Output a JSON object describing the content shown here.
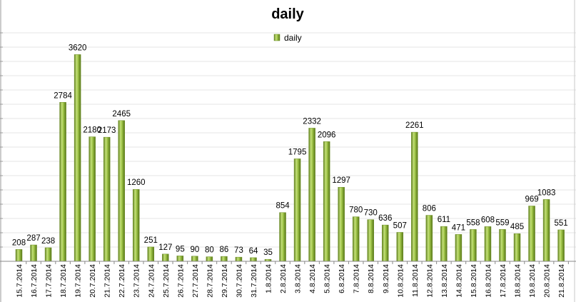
{
  "chart_data": {
    "type": "bar",
    "title": "daily",
    "xlabel": "",
    "ylabel": "",
    "legend": {
      "position": "top",
      "entries": [
        "daily"
      ]
    },
    "grid": true,
    "ylim": [
      0,
      4000
    ],
    "series_color": "#8db53a",
    "categories": [
      "15.7.2014",
      "16.7.2014",
      "17.7.2014",
      "18.7.2014",
      "19.7.2014",
      "20.7.2014",
      "21.7.2014",
      "22.7.2014",
      "23.7.2014",
      "24.7.2014",
      "25.7.2014",
      "26.7.2014",
      "27.7.2014",
      "28.7.2014",
      "29.7.2014",
      "30.7.2014",
      "31.7.2014",
      "1.8.2014",
      "2.8.2014",
      "3.8.2014",
      "4.8.2014",
      "5.8.2014",
      "6.8.2014",
      "7.8.2014",
      "8.8.2014",
      "9.8.2014",
      "10.8.2014",
      "11.8.2014",
      "12.8.2014",
      "13.8.2014",
      "14.8.2014",
      "15.8.2014",
      "16.8.2014",
      "17.8.2014",
      "18.8.2014",
      "19.8.2014",
      "20.8.2014",
      "21.8.2014"
    ],
    "series": [
      {
        "name": "daily",
        "values": [
          208,
          287,
          238,
          2784,
          3620,
          2180,
          2173,
          2465,
          1260,
          251,
          127,
          95,
          90,
          80,
          86,
          73,
          64,
          35,
          854,
          1795,
          2332,
          2096,
          1297,
          780,
          730,
          636,
          507,
          2261,
          806,
          611,
          471,
          558,
          608,
          559,
          485,
          969,
          1083,
          551
        ]
      }
    ]
  }
}
